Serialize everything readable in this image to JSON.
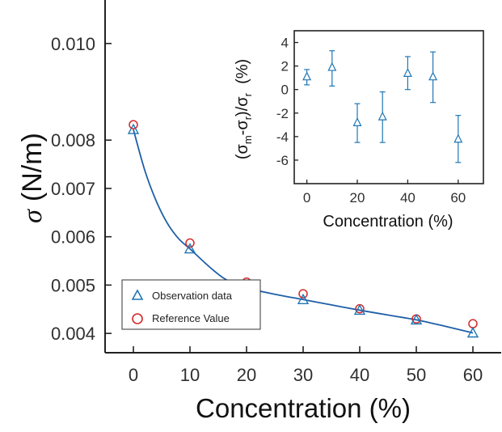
{
  "chart_data": [
    {
      "type": "scatter",
      "xlabel": "Concentration (%)",
      "ylabel_symbol": "σ",
      "ylabel_unit": "(N/m)",
      "xlim": [
        -5,
        65
      ],
      "ylim": [
        0.0036,
        0.0109
      ],
      "xticks": [
        0,
        10,
        20,
        30,
        40,
        50,
        60
      ],
      "xtick_labels": [
        "0",
        "10",
        "20",
        "30",
        "40",
        "50",
        "60"
      ],
      "yticks": [
        0.004,
        0.005,
        0.006,
        0.007,
        0.008,
        0.01
      ],
      "ytick_labels": [
        "0.004",
        "0.005",
        "0.006",
        "0.007",
        "0.008",
        "0.010"
      ],
      "grid": false,
      "legend_position": "bottom-left",
      "series": [
        {
          "name": "Observation data",
          "marker": "triangle-open",
          "color": "#1f77b4",
          "x": [
            0,
            10,
            20,
            30,
            40,
            50,
            60
          ],
          "y": [
            0.00822,
            0.00575,
            0.00494,
            0.0047,
            0.00448,
            0.00428,
            0.00401
          ]
        },
        {
          "name": "Reference Value",
          "marker": "circle-open",
          "color": "#d62728",
          "x": [
            0,
            10,
            20,
            30,
            40,
            50,
            60
          ],
          "y": [
            0.00832,
            0.00587,
            0.00506,
            0.00482,
            0.00451,
            0.0043,
            0.0042
          ]
        }
      ],
      "fit_curve": {
        "color": "#1f5fa8",
        "x": [
          0,
          2,
          4,
          6,
          8,
          10,
          12,
          14,
          16,
          18,
          20,
          25,
          30,
          35,
          40,
          45,
          50,
          55,
          60
        ],
        "y": [
          0.00822,
          0.00738,
          0.00675,
          0.00628,
          0.00596,
          0.00575,
          0.00553,
          0.00532,
          0.00514,
          0.00502,
          0.00494,
          0.00481,
          0.0047,
          0.00459,
          0.00448,
          0.00438,
          0.00428,
          0.00415,
          0.00401
        ]
      }
    },
    {
      "type": "scatter",
      "xlabel": "Concentration (%)",
      "ylabel_parts": [
        "(σ",
        "m",
        "-σ",
        "r",
        ")/σ",
        "r",
        "  (%)"
      ],
      "xlim": [
        -5,
        70
      ],
      "ylim": [
        -8,
        5
      ],
      "xticks": [
        0,
        20,
        40,
        60
      ],
      "xtick_labels": [
        "0",
        "20",
        "40",
        "60"
      ],
      "yticks": [
        -6,
        -4,
        -2,
        0,
        2,
        4
      ],
      "ytick_labels": [
        "-6",
        "-4",
        "-2",
        "0",
        "2",
        "4"
      ],
      "grid": false,
      "series": [
        {
          "marker": "triangle-open",
          "color": "#1f77b4",
          "x": [
            0,
            10,
            20,
            30,
            40,
            50,
            60
          ],
          "y": [
            1.1,
            1.9,
            -2.8,
            -2.3,
            1.4,
            1.1,
            -4.2
          ],
          "err_low": [
            0.7,
            1.6,
            1.7,
            2.2,
            1.4,
            2.2,
            2.0
          ],
          "err_high": [
            0.6,
            1.4,
            1.6,
            2.1,
            1.4,
            2.1,
            2.0
          ]
        }
      ]
    }
  ]
}
